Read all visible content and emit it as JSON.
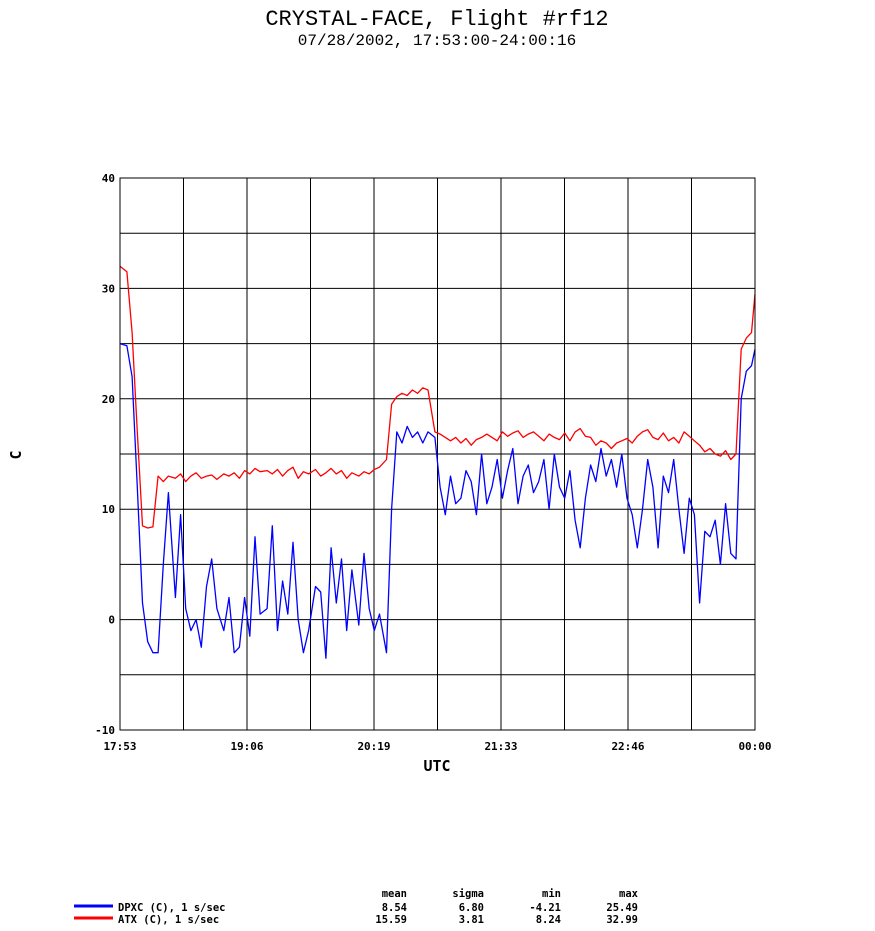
{
  "chart_data": {
    "type": "line",
    "title": "CRYSTAL-FACE, Flight #rf12",
    "subtitle": "07/28/2002, 17:53:00-24:00:16",
    "xlabel": "UTC",
    "ylabel": "C",
    "xlim": [
      "17:53",
      "00:00"
    ],
    "ylim": [
      -10,
      40
    ],
    "x_ticks": [
      "17:53",
      "19:06",
      "20:19",
      "21:33",
      "22:46",
      "00:00"
    ],
    "y_ticks": [
      -10,
      0,
      10,
      20,
      30,
      40
    ],
    "grid": true,
    "series": [
      {
        "name": "DPXC (C), 1 s/sec",
        "color": "#0000ff",
        "x": [
          "17:53",
          "17:57",
          "18:00",
          "18:03",
          "18:06",
          "18:09",
          "18:12",
          "18:15",
          "18:18",
          "18:21",
          "18:25",
          "18:28",
          "18:31",
          "18:34",
          "18:37",
          "18:40",
          "18:43",
          "18:46",
          "18:49",
          "18:53",
          "18:56",
          "18:59",
          "19:02",
          "19:05",
          "19:08",
          "19:11",
          "19:14",
          "19:18",
          "19:21",
          "19:24",
          "19:27",
          "19:30",
          "19:33",
          "19:36",
          "19:39",
          "19:42",
          "19:46",
          "19:49",
          "19:52",
          "19:55",
          "19:58",
          "20:01",
          "20:04",
          "20:07",
          "20:11",
          "20:14",
          "20:17",
          "20:20",
          "20:23",
          "20:27",
          "20:30",
          "20:33",
          "20:36",
          "20:39",
          "20:42",
          "20:45",
          "20:48",
          "20:51",
          "20:55",
          "20:58",
          "21:01",
          "21:04",
          "21:07",
          "21:10",
          "21:13",
          "21:16",
          "21:19",
          "21:22",
          "21:25",
          "21:28",
          "21:31",
          "21:34",
          "21:37",
          "21:40",
          "21:43",
          "21:46",
          "21:49",
          "21:52",
          "21:55",
          "21:58",
          "22:01",
          "22:04",
          "22:07",
          "22:10",
          "22:13",
          "22:16",
          "22:19",
          "22:22",
          "22:25",
          "22:28",
          "22:31",
          "22:34",
          "22:37",
          "22:40",
          "22:43",
          "22:46",
          "22:49",
          "22:52",
          "22:55",
          "22:58",
          "23:01",
          "23:04",
          "23:07",
          "23:10",
          "23:13",
          "23:16",
          "23:19",
          "23:22",
          "23:25",
          "23:28",
          "23:31",
          "23:34",
          "23:37",
          "23:40",
          "23:43",
          "23:46",
          "23:49",
          "23:52",
          "23:55",
          "23:58",
          "24:00"
        ],
        "values": [
          25.0,
          24.8,
          22.0,
          12.0,
          1.5,
          -2.0,
          -3.0,
          -3.0,
          5.0,
          11.5,
          2.0,
          9.5,
          1.0,
          -1.0,
          0.0,
          -2.5,
          3.0,
          5.5,
          1.0,
          -1.0,
          2.0,
          -3.0,
          -2.5,
          2.0,
          -1.5,
          7.5,
          0.5,
          1.0,
          8.5,
          -1.0,
          3.5,
          0.5,
          7.0,
          0.0,
          -3.0,
          -1.0,
          3.0,
          2.5,
          -3.5,
          6.5,
          1.5,
          5.5,
          -1.0,
          4.5,
          -0.5,
          6.0,
          1.0,
          -1.0,
          0.5,
          -3.0,
          10.0,
          17.0,
          16.0,
          17.5,
          16.5,
          17.0,
          16.0,
          17.0,
          16.5,
          12.0,
          9.5,
          13.0,
          10.5,
          11.0,
          13.5,
          12.5,
          9.5,
          15.0,
          10.5,
          12.0,
          14.5,
          11.0,
          13.5,
          15.5,
          10.5,
          13.0,
          14.0,
          11.5,
          12.5,
          14.5,
          10.0,
          15.0,
          12.0,
          11.0,
          13.5,
          9.0,
          6.5,
          11.0,
          14.0,
          12.5,
          15.5,
          13.0,
          14.5,
          12.0,
          15.0,
          11.0,
          9.5,
          6.5,
          10.0,
          14.5,
          12.0,
          6.5,
          13.0,
          11.5,
          14.5,
          10.0,
          6.0,
          11.0,
          9.5,
          1.5,
          8.0,
          7.5,
          9.0,
          5.0,
          10.5,
          6.0,
          5.5,
          20.0,
          22.5,
          23.0,
          24.5
        ]
      },
      {
        "name": "ATX (C), 1 s/sec",
        "color": "#ff0000",
        "x": [
          "17:53",
          "17:57",
          "18:00",
          "18:03",
          "18:06",
          "18:09",
          "18:12",
          "18:15",
          "18:18",
          "18:21",
          "18:25",
          "18:28",
          "18:31",
          "18:34",
          "18:37",
          "18:40",
          "18:43",
          "18:46",
          "18:49",
          "18:53",
          "18:56",
          "18:59",
          "19:02",
          "19:05",
          "19:08",
          "19:11",
          "19:14",
          "19:18",
          "19:21",
          "19:24",
          "19:27",
          "19:30",
          "19:33",
          "19:36",
          "19:39",
          "19:42",
          "19:46",
          "19:49",
          "19:52",
          "19:55",
          "19:58",
          "20:01",
          "20:04",
          "20:07",
          "20:11",
          "20:14",
          "20:17",
          "20:20",
          "20:23",
          "20:27",
          "20:30",
          "20:33",
          "20:36",
          "20:39",
          "20:42",
          "20:45",
          "20:48",
          "20:51",
          "20:55",
          "20:58",
          "21:01",
          "21:04",
          "21:07",
          "21:10",
          "21:13",
          "21:16",
          "21:19",
          "21:22",
          "21:25",
          "21:28",
          "21:31",
          "21:34",
          "21:37",
          "21:40",
          "21:43",
          "21:46",
          "21:49",
          "21:52",
          "21:55",
          "21:58",
          "22:01",
          "22:04",
          "22:07",
          "22:10",
          "22:13",
          "22:16",
          "22:19",
          "22:22",
          "22:25",
          "22:28",
          "22:31",
          "22:34",
          "22:37",
          "22:40",
          "22:43",
          "22:46",
          "22:49",
          "22:52",
          "22:55",
          "22:58",
          "23:01",
          "23:04",
          "23:07",
          "23:10",
          "23:13",
          "23:16",
          "23:19",
          "23:22",
          "23:25",
          "23:28",
          "23:31",
          "23:34",
          "23:37",
          "23:40",
          "23:43",
          "23:46",
          "23:49",
          "23:52",
          "23:55",
          "23:58",
          "24:00"
        ],
        "values": [
          32.0,
          31.5,
          26.0,
          17.0,
          8.5,
          8.3,
          8.4,
          13.0,
          12.5,
          13.0,
          12.8,
          13.2,
          12.5,
          13.0,
          13.3,
          12.8,
          13.0,
          13.1,
          12.7,
          13.2,
          13.0,
          13.3,
          12.8,
          13.5,
          13.2,
          13.7,
          13.4,
          13.5,
          13.2,
          13.6,
          13.0,
          13.5,
          13.8,
          12.8,
          13.4,
          13.2,
          13.6,
          13.0,
          13.3,
          13.7,
          13.2,
          13.5,
          12.8,
          13.3,
          13.0,
          13.4,
          13.2,
          13.6,
          13.8,
          14.5,
          19.5,
          20.2,
          20.5,
          20.3,
          20.8,
          20.5,
          21.0,
          20.8,
          17.0,
          16.8,
          16.5,
          16.2,
          16.5,
          16.0,
          16.4,
          15.8,
          16.3,
          16.5,
          16.8,
          16.5,
          16.2,
          17.0,
          16.6,
          16.9,
          17.1,
          16.5,
          16.8,
          17.0,
          16.6,
          16.2,
          16.8,
          16.5,
          16.3,
          16.9,
          16.2,
          17.0,
          17.3,
          16.6,
          16.5,
          15.8,
          16.2,
          16.0,
          15.5,
          16.0,
          16.2,
          16.4,
          16.0,
          16.6,
          17.0,
          17.2,
          16.5,
          16.3,
          16.9,
          16.2,
          16.5,
          16.0,
          17.0,
          16.6,
          16.2,
          15.8,
          15.2,
          15.5,
          15.0,
          14.8,
          15.3,
          14.5,
          15.0,
          24.5,
          25.5,
          26.0,
          29.5
        ]
      }
    ],
    "stats": {
      "headers": [
        "mean",
        "sigma",
        "min",
        "max"
      ],
      "rows": [
        {
          "label": "DPXC (C), 1 s/sec",
          "mean": "8.54",
          "sigma": "6.80",
          "min": "-4.21",
          "max": "25.49"
        },
        {
          "label": "ATX (C), 1 s/sec",
          "mean": "15.59",
          "sigma": "3.81",
          "min": "8.24",
          "max": "32.99"
        }
      ]
    }
  }
}
